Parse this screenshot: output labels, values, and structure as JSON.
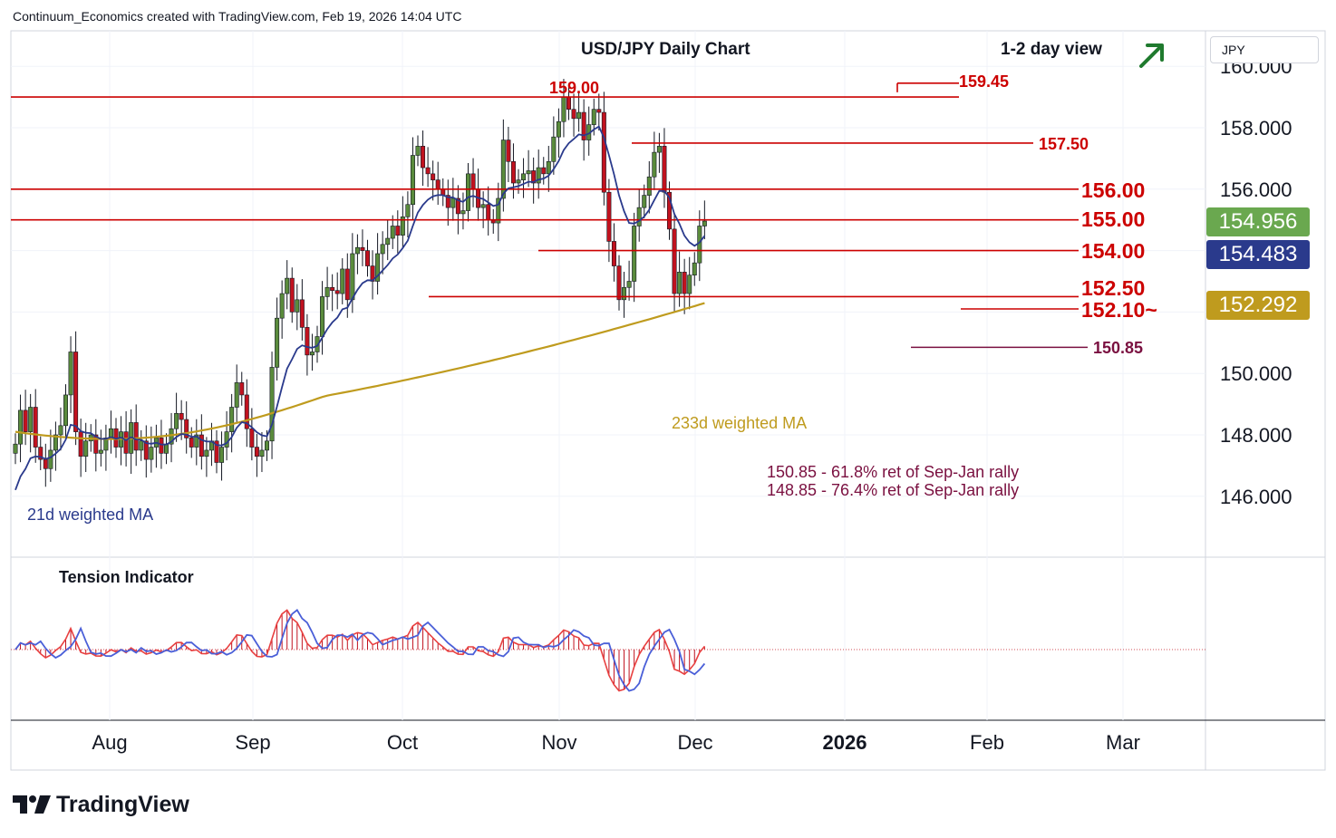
{
  "header": {
    "attribution": "Continuum_Economics created with TradingView.com, Feb 19, 2026 14:04 UTC",
    "title": "USD/JPY Daily Chart",
    "view": "1-2 day view",
    "currency": "JPY"
  },
  "brand": {
    "logo_text": "TradingView"
  },
  "colors": {
    "up": "#5a8b3c",
    "down": "#c1121f",
    "level": "#cc0000",
    "ma21": "#2a3a8c",
    "ma233": "#bf9b1e",
    "fib": "#7a1040",
    "arrow": "#1f7a2e",
    "tag_last": "#6aa84f",
    "tag_ma21": "#2a3a8c",
    "tag_ma233": "#bf9b1e"
  },
  "price_tags": {
    "last": "154.956",
    "ma21": "154.483",
    "ma233": "152.292"
  },
  "chart_data": {
    "type": "candlestick",
    "instrument": "USD/JPY",
    "ylim": [
      144.0,
      160.5
    ],
    "y_ticks": [
      "146.000",
      "148.000",
      "150.000",
      "152.000",
      "154.000",
      "156.000",
      "158.000",
      "160.000"
    ],
    "x_ticks": [
      "Aug",
      "Sep",
      "Oct",
      "Nov",
      "Dec",
      "2026",
      "Feb",
      "Mar"
    ],
    "levels": [
      {
        "label": "159.00",
        "value": 159.0
      },
      {
        "label": "159.45",
        "value": 159.45
      },
      {
        "label": "157.50",
        "value": 157.5
      },
      {
        "label": "156.00",
        "value": 156.0
      },
      {
        "label": "155.00",
        "value": 155.0
      },
      {
        "label": "154.00",
        "value": 154.0
      },
      {
        "label": "152.50",
        "value": 152.5
      },
      {
        "label": "152.10~",
        "value": 152.1
      },
      {
        "label": "150.85",
        "value": 150.85
      }
    ],
    "annotations": [
      "233d weighted MA",
      "21d weighted MA",
      "150.85 - 61.8% ret of Sep-Jan rally",
      "148.85 - 76.4% ret of Sep-Jan rally"
    ],
    "closes": [
      147.7,
      148.8,
      148.1,
      148.9,
      147.6,
      147.2,
      146.9,
      147.5,
      148.0,
      148.3,
      149.3,
      150.7,
      148.1,
      147.3,
      147.8,
      148.0,
      147.4,
      147.5,
      147.9,
      148.2,
      147.6,
      148.1,
      147.4,
      148.4,
      147.5,
      147.8,
      147.2,
      147.6,
      147.9,
      147.4,
      147.7,
      148.2,
      148.7,
      148.5,
      147.9,
      147.6,
      148.0,
      147.3,
      147.5,
      147.8,
      147.1,
      147.6,
      148.1,
      148.9,
      149.7,
      149.3,
      148.2,
      147.6,
      147.3,
      147.5,
      147.8,
      150.2,
      151.8,
      152.6,
      153.1,
      152.0,
      152.4,
      151.5,
      150.6,
      150.7,
      151.2,
      152.5,
      152.8,
      152.7,
      152.6,
      153.4,
      152.4,
      153.9,
      154.1,
      154.0,
      153.5,
      153.0,
      153.9,
      154.2,
      154.4,
      154.8,
      154.5,
      155.1,
      155.5,
      157.1,
      157.4,
      156.7,
      156.5,
      156.3,
      156.0,
      155.8,
      155.4,
      155.7,
      155.2,
      155.3,
      156.5,
      156.0,
      155.4,
      155.5,
      155.0,
      154.9,
      155.7,
      157.6,
      156.9,
      156.2,
      156.3,
      156.5,
      156.6,
      156.2,
      156.7,
      156.5,
      156.9,
      157.7,
      158.2,
      159.0,
      158.6,
      158.3,
      158.5,
      157.6,
      158.1,
      158.6,
      158.5,
      155.9,
      154.3,
      153.5,
      152.4,
      152.8,
      153.0,
      154.8,
      155.4,
      155.8,
      156.4,
      157.2,
      157.4,
      155.9,
      154.7,
      152.6,
      153.3,
      152.6,
      153.2,
      153.6,
      154.8,
      154.96
    ],
    "ma233_start": 148.1,
    "ma233_end": 152.29,
    "ma21_end": 154.48,
    "subplot": {
      "title": "Tension Indicator"
    }
  }
}
